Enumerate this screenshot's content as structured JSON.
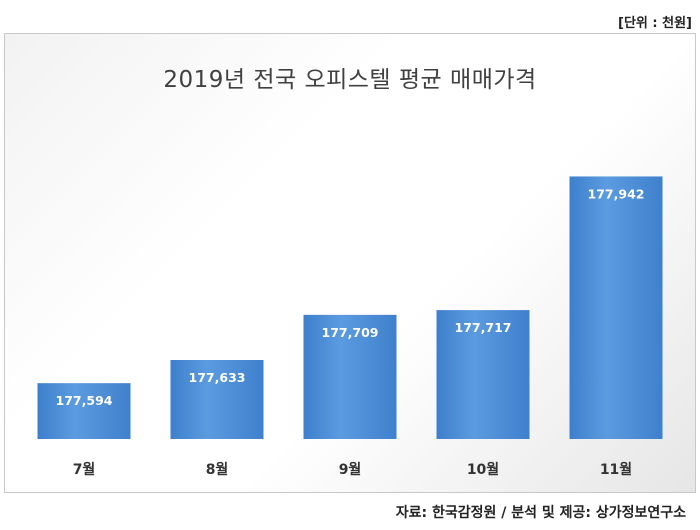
{
  "unit_note": "[단위 : 천원]",
  "source_note": "자료: 한국감정원 / 분석 및 제공: 상가정보연구소",
  "colors": {
    "bar": "#4a8fd6",
    "bar_light": "#6aa8e6",
    "bar_dark": "#3a78c2",
    "label": "#ffffff",
    "axis_label": "#333333"
  },
  "chart_data": {
    "type": "bar",
    "title": "2019년 전국 오피스텔 평균 매매가격",
    "categories": [
      "7월",
      "8월",
      "9월",
      "10월",
      "11월"
    ],
    "values": [
      177594,
      177633,
      177709,
      177717,
      177942
    ],
    "value_labels": [
      "177,594",
      "177,633",
      "177,709",
      "177,717",
      "177,942"
    ],
    "xlabel": "",
    "ylabel": "",
    "ylim": [
      177500,
      178000
    ],
    "grid": false,
    "legend": "none"
  }
}
